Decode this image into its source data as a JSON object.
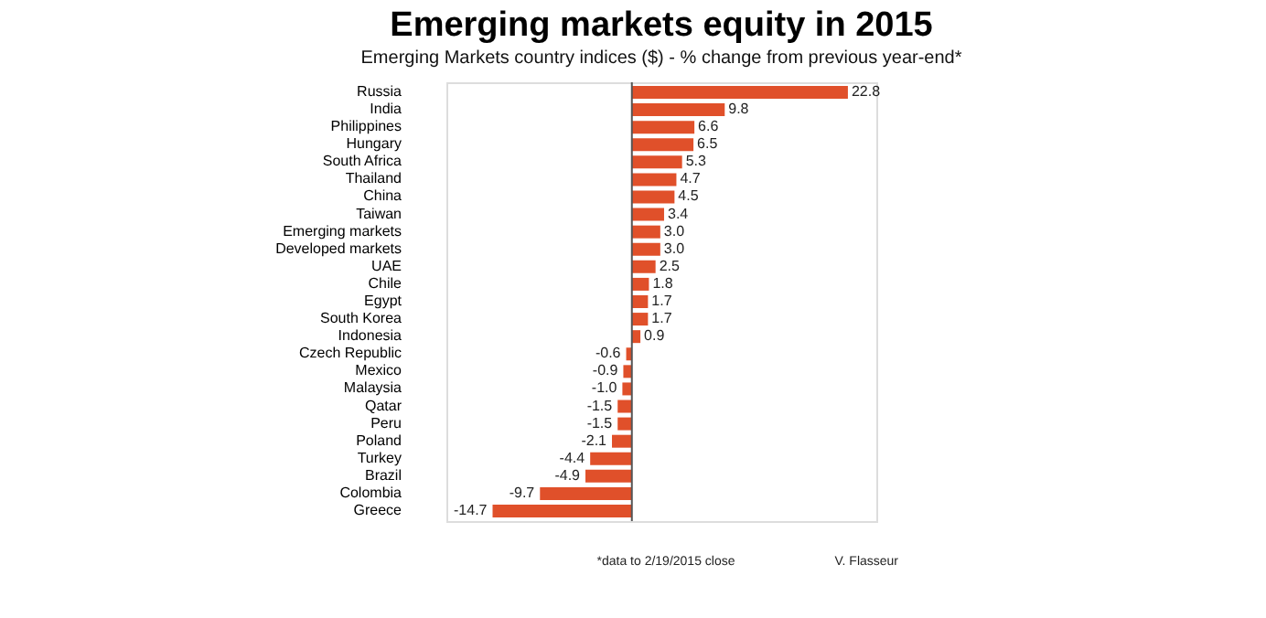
{
  "chart_data": {
    "type": "bar",
    "orientation": "horizontal",
    "title": "Emerging markets equity in 2015",
    "subtitle": "Emerging Markets country indices ($) - % change from previous year-end*",
    "categories": [
      "Russia",
      "India",
      "Philippines",
      "Hungary",
      "South Africa",
      "Thailand",
      "China",
      "Taiwan",
      "Emerging markets",
      "Developed markets",
      "UAE",
      "Chile",
      "Egypt",
      "South Korea",
      "Indonesia",
      "Czech Republic",
      "Mexico",
      "Malaysia",
      "Qatar",
      "Peru",
      "Poland",
      "Turkey",
      "Brazil",
      "Colombia",
      "Greece"
    ],
    "values": [
      22.8,
      9.8,
      6.6,
      6.5,
      5.3,
      4.7,
      4.5,
      3.4,
      3.0,
      3.0,
      2.5,
      1.8,
      1.7,
      1.7,
      0.9,
      -0.6,
      -0.9,
      -1.0,
      -1.5,
      -1.5,
      -2.1,
      -4.4,
      -4.9,
      -9.7,
      -14.7
    ],
    "value_labels": [
      "22.8",
      "9.8",
      "6.6",
      "6.5",
      "5.3",
      "4.7",
      "4.5",
      "3.4",
      "3.0",
      "3.0",
      "2.5",
      "1.8",
      "1.7",
      "1.7",
      "0.9",
      "-0.6",
      "-0.9",
      "-1.0",
      "-1.5",
      "-1.5",
      "-2.1",
      "-4.4",
      "-4.9",
      "-9.7",
      "-14.7"
    ],
    "color": "#e0502a",
    "annotations": [
      "*data to 2/19/2015 close",
      "V. Flasseur"
    ],
    "grid": false
  }
}
